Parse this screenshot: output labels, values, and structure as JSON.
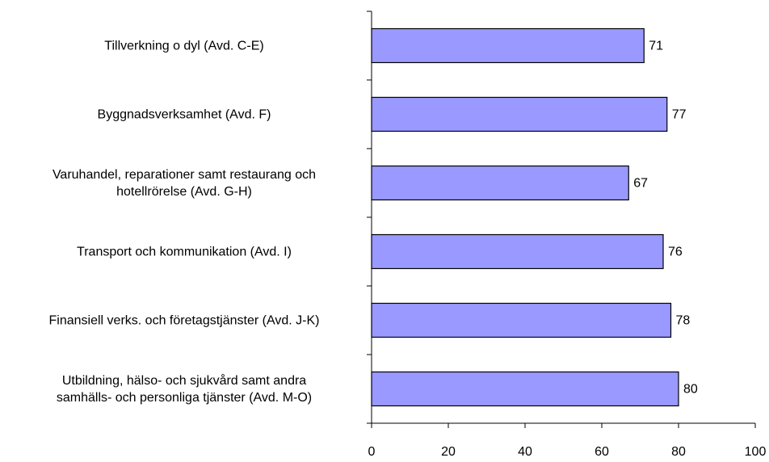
{
  "chart_data": {
    "type": "barh",
    "categories": [
      "Tillverkning o dyl (Avd. C-E)",
      "Byggnadsverksamhet (Avd. F)",
      "Varuhandel, reparationer samt restaurang och\nhotellrörelse (Avd. G-H)",
      "Transport och kommunikation (Avd. I)",
      "Finansiell verks. och företagstjänster (Avd. J-K)",
      "Utbildning, hälso- och sjukvård samt andra\nsamhälls- och personliga tjänster (Avd. M-O)"
    ],
    "values": [
      71,
      77,
      67,
      76,
      78,
      80
    ],
    "color": "#9999ff",
    "xlim": [
      0,
      100
    ],
    "xticks": [
      0,
      20,
      40,
      60,
      80,
      100
    ]
  }
}
